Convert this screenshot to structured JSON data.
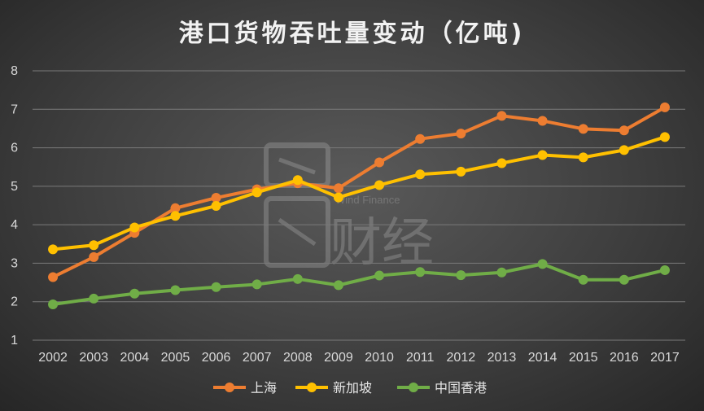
{
  "chart_data": {
    "type": "line",
    "title": "港口货物吞吐量变动（亿吨)",
    "x": [
      "2002",
      "2003",
      "2004",
      "2005",
      "2006",
      "2007",
      "2008",
      "2009",
      "2010",
      "2011",
      "2012",
      "2013",
      "2014",
      "2015",
      "2016",
      "2017"
    ],
    "ylim": [
      1,
      8
    ],
    "yticks": [
      1,
      2,
      3,
      4,
      5,
      6,
      7,
      8
    ],
    "grid": true,
    "legend_position": "bottom",
    "series": [
      {
        "name": "上海",
        "color": "#ED7D31",
        "values": [
          2.64,
          3.16,
          3.79,
          4.43,
          4.7,
          4.92,
          5.08,
          4.95,
          5.62,
          6.23,
          6.37,
          6.83,
          6.7,
          6.49,
          6.45,
          7.05
        ]
      },
      {
        "name": "新加坡",
        "color": "#FFC000",
        "values": [
          3.36,
          3.47,
          3.93,
          4.23,
          4.49,
          4.84,
          5.16,
          4.71,
          5.03,
          5.31,
          5.38,
          5.6,
          5.81,
          5.75,
          5.94,
          6.28
        ]
      },
      {
        "name": "中国香港",
        "color": "#70AD47",
        "values": [
          1.93,
          2.08,
          2.21,
          2.3,
          2.38,
          2.45,
          2.59,
          2.43,
          2.68,
          2.77,
          2.69,
          2.76,
          2.98,
          2.57,
          2.57,
          2.82
        ]
      }
    ]
  },
  "watermark": {
    "text_en": "Wind Finance",
    "text_cn": "财经"
  }
}
